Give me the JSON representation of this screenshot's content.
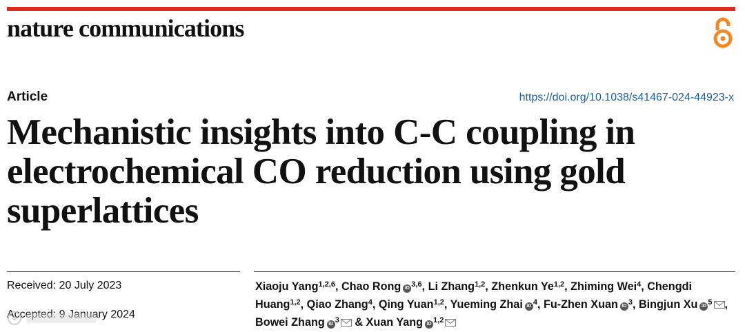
{
  "journal": {
    "name": "nature communications"
  },
  "article": {
    "type": "Article",
    "doi": "https://doi.org/10.1038/s41467-024-44923-x",
    "title_lines": [
      "Mechanistic insights into C-C coupling in",
      "electrochemical CO reduction using gold",
      "superlattices"
    ]
  },
  "dates": {
    "received": "Received: 20 July 2023",
    "accepted": "Accepted: 9 January 2024"
  },
  "authors": [
    {
      "name": "Xiaoju Yang",
      "aff": "1,2,6",
      "orcid": false,
      "email": false
    },
    {
      "name": "Chao Rong",
      "aff": "3,6",
      "orcid": true,
      "email": false
    },
    {
      "name": "Li Zhang",
      "aff": "1,2",
      "orcid": false,
      "email": false
    },
    {
      "name": "Zhenkun Ye",
      "aff": "1,2",
      "orcid": false,
      "email": false
    },
    {
      "name": "Zhiming Wei",
      "aff": "4",
      "orcid": false,
      "email": false
    },
    {
      "name": "Chengdi Huang",
      "aff": "1,2",
      "orcid": false,
      "email": false
    },
    {
      "name": "Qiao Zhang",
      "aff": "4",
      "orcid": false,
      "email": false
    },
    {
      "name": "Qing Yuan",
      "aff": "1,2",
      "orcid": false,
      "email": false
    },
    {
      "name": "Yueming Zhai",
      "aff": "4",
      "orcid": true,
      "email": false
    },
    {
      "name": "Fu-Zhen Xuan",
      "aff": "3",
      "orcid": true,
      "email": false
    },
    {
      "name": "Bingjun Xu",
      "aff": "5",
      "orcid": true,
      "email": true
    },
    {
      "name": "Bowei Zhang",
      "aff": "3",
      "orcid": true,
      "email": true
    },
    {
      "name": "Xuan Yang",
      "aff": "1,2",
      "orcid": true,
      "email": true
    }
  ],
  "colors": {
    "accent_bar": "#e02b20",
    "open_access": "#f08a24",
    "doi_link": "#1b5fa8"
  },
  "icons": {
    "open_access": "open-access-icon",
    "orcid": "orcid-icon",
    "email": "envelope-icon"
  }
}
